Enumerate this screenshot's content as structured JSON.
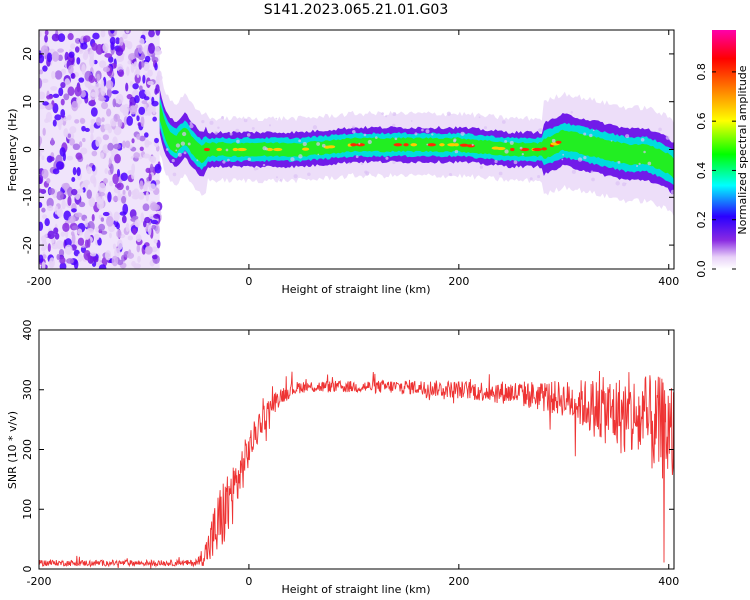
{
  "page_title": "S141.2023.065.21.01.G03",
  "chart_data": [
    {
      "type": "heatmap",
      "xlabel": "Height of straight line (km)",
      "ylabel": "Frequency (Hz)",
      "xlim": [
        -200,
        405
      ],
      "ylim": [
        -25,
        25
      ],
      "x_ticks": [
        -200,
        0,
        200,
        400
      ],
      "y_ticks": [
        -20,
        -10,
        0,
        10,
        20
      ],
      "colorbar": {
        "label": "Normalized spectral amplitude",
        "range": [
          0,
          0.97
        ],
        "ticks": [
          0.0,
          0.2,
          0.4,
          0.6,
          0.8
        ],
        "tick_labels": [
          "0.0",
          "0.2",
          "0.4",
          "0.6",
          "0.8"
        ],
        "colors": [
          "#ffffff",
          "#e8d0f8",
          "#8a2be2",
          "#2a00ff",
          "#00ffff",
          "#00ff00",
          "#ffff00",
          "#ff8000",
          "#ff0000",
          "#ff00aa"
        ]
      },
      "noise_region_x": [
        -200,
        -85
      ],
      "ridge": {
        "x": [
          -85,
          -80,
          -75,
          -70,
          -65,
          -60,
          -55,
          -50,
          -45,
          -40,
          -30,
          -20,
          0,
          50,
          100,
          150,
          200,
          250,
          280,
          300,
          320,
          340,
          360,
          380,
          400,
          405
        ],
        "frequency": [
          8,
          4,
          2,
          1,
          2,
          3,
          1,
          0,
          -1,
          0,
          0,
          0,
          0,
          0,
          1,
          1,
          1,
          0,
          0,
          2,
          1,
          0,
          -1,
          -1,
          -3,
          -4
        ]
      }
    },
    {
      "type": "line",
      "xlabel": "Height of straight line (km)",
      "ylabel": "SNR (10 * v/v)",
      "xlim": [
        -200,
        405
      ],
      "ylim": [
        0,
        400
      ],
      "x_ticks": [
        -200,
        0,
        200,
        400
      ],
      "y_ticks": [
        0,
        100,
        200,
        300,
        400
      ],
      "series": [
        {
          "color": "#ee3333",
          "x": [
            -200,
            -100,
            -50,
            -40,
            -30,
            -20,
            -10,
            0,
            10,
            20,
            30,
            40,
            50,
            100,
            150,
            200,
            250,
            300,
            330,
            360,
            380,
            400,
            405
          ],
          "y": [
            10,
            10,
            10,
            30,
            70,
            110,
            150,
            200,
            240,
            270,
            290,
            300,
            305,
            305,
            305,
            300,
            295,
            285,
            270,
            255,
            245,
            230,
            220
          ],
          "noise_amplitude": [
            5,
            5,
            5,
            25,
            60,
            60,
            45,
            30,
            25,
            20,
            15,
            12,
            10,
            10,
            12,
            15,
            20,
            30,
            50,
            70,
            80,
            90,
            90
          ]
        }
      ]
    }
  ]
}
